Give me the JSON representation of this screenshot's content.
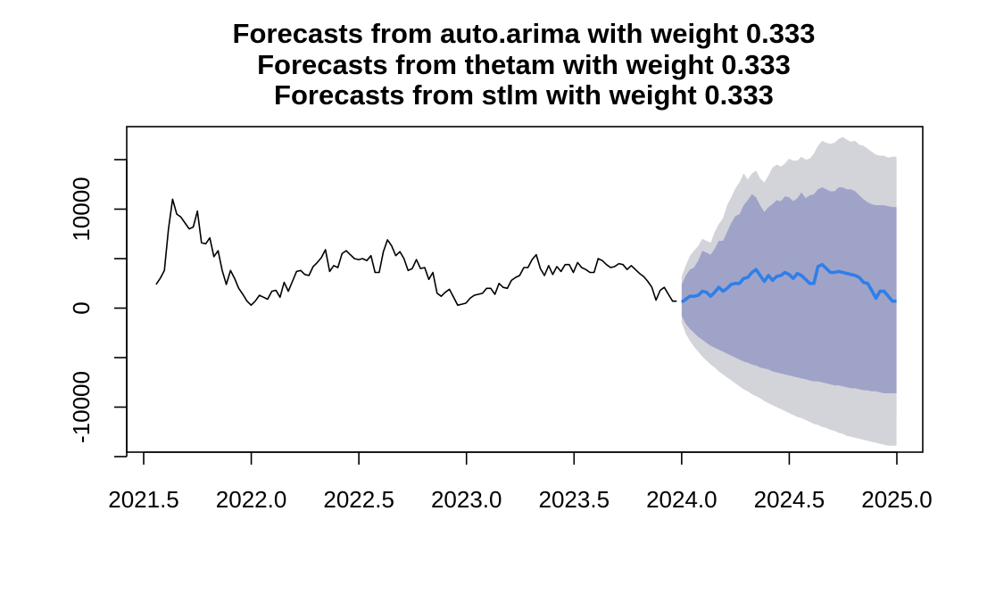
{
  "chart_data": {
    "type": "line",
    "title": [
      "Forecasts from auto.arima with weight 0.333",
      "Forecasts from thetam with weight 0.333",
      "Forecasts from stlm with weight 0.333"
    ],
    "xlabel": "",
    "ylabel": "",
    "xlim": [
      2021.5,
      2025.0
    ],
    "ylim": [
      -14500,
      18500
    ],
    "x_ticks": [
      "2021.5",
      "2022.0",
      "2022.5",
      "2023.0",
      "2023.5",
      "2024.0",
      "2024.5",
      "2025.0"
    ],
    "x_tick_values": [
      2021.5,
      2022.0,
      2022.5,
      2023.0,
      2023.5,
      2024.0,
      2024.5,
      2025.0
    ],
    "y_ticks": [
      "-10000",
      "0",
      "10000"
    ],
    "y_tick_values": [
      -10000,
      0,
      10000
    ],
    "y_minor_ticks": [
      -15000,
      -5000,
      5000,
      15000
    ],
    "grid": false,
    "colors": {
      "history": "#000000",
      "forecast": "#2f7fe8",
      "band80": "#a0a3c8",
      "band95": "#d3d3da"
    },
    "history": {
      "start": 2021.5577,
      "step": 0.0192,
      "values": [
        2400,
        3000,
        3800,
        8000,
        11000,
        9500,
        9200,
        8600,
        8000,
        8200,
        9800,
        6600,
        6500,
        7100,
        5200,
        5800,
        3800,
        2400,
        3800,
        3000,
        2000,
        1400,
        700,
        300,
        700,
        1300,
        1100,
        900,
        1700,
        1800,
        1100,
        2600,
        1700,
        2700,
        3700,
        3800,
        3400,
        3300,
        4200,
        4600,
        5100,
        5900,
        3700,
        4300,
        4100,
        5500,
        5800,
        5400,
        5000,
        4900,
        5000,
        4800,
        5300,
        3600,
        3600,
        5700,
        6900,
        6300,
        5300,
        5700,
        5000,
        3800,
        4000,
        4900,
        4000,
        4100,
        2900,
        3600,
        1500,
        1200,
        1600,
        1900,
        1100,
        300,
        400,
        500,
        1000,
        1300,
        1400,
        1500,
        2000,
        2000,
        1400,
        2500,
        2100,
        2000,
        2800,
        3100,
        3300,
        4100,
        4100,
        4900,
        5400,
        4000,
        3300,
        4300,
        3400,
        4200,
        3700,
        4400,
        4400,
        3600,
        4600,
        4100,
        3900,
        3600,
        3600,
        5000,
        4800,
        4400,
        4100,
        4200,
        4500,
        4400,
        3900,
        4300,
        3900,
        3500,
        3200,
        2700,
        2100,
        800,
        1800,
        2100,
        1400,
        700,
        700
      ]
    },
    "forecast": {
      "start": 2024.0,
      "step": 0.0192,
      "mean": [
        600,
        900,
        1200,
        1200,
        1300,
        1700,
        1600,
        1200,
        1600,
        2100,
        1700,
        2000,
        2400,
        2500,
        2500,
        3000,
        3100,
        3600,
        3900,
        3300,
        2700,
        3300,
        2800,
        3200,
        3300,
        3600,
        3400,
        3000,
        3500,
        3300,
        2900,
        2500,
        2500,
        4200,
        4400,
        4000,
        3600,
        3600,
        3700,
        3600,
        3500,
        3400,
        3300,
        3100,
        2600,
        2500,
        1800,
        1000,
        1700,
        1700,
        1200,
        700,
        700
      ],
      "upper80": [
        2400,
        3300,
        3900,
        4100,
        4800,
        5800,
        5600,
        5400,
        6000,
        6800,
        6800,
        7700,
        8600,
        9300,
        9500,
        10400,
        10900,
        11500,
        11200,
        10400,
        9700,
        10200,
        10500,
        10900,
        10800,
        11300,
        11200,
        10800,
        11100,
        11700,
        11100,
        11400,
        11500,
        12000,
        12200,
        12000,
        11800,
        11800,
        12200,
        12200,
        12000,
        12000,
        11800,
        11400,
        11000,
        10700,
        10500,
        10400,
        10400,
        10400,
        10300,
        10200,
        10200
      ],
      "upper95": [
        3200,
        4300,
        5300,
        5800,
        6300,
        7000,
        6800,
        6600,
        7700,
        8500,
        9100,
        10400,
        11200,
        12100,
        12700,
        13600,
        13000,
        13600,
        13900,
        13100,
        12700,
        13400,
        14200,
        14500,
        14300,
        14600,
        15100,
        14900,
        14900,
        15300,
        15000,
        15100,
        15600,
        16400,
        16900,
        16700,
        16600,
        16700,
        17100,
        17300,
        17000,
        16800,
        16900,
        16500,
        16400,
        16100,
        15800,
        15500,
        15400,
        15400,
        15200,
        15300,
        15300
      ],
      "lower80": [
        -800,
        -1600,
        -2100,
        -2500,
        -2900,
        -3200,
        -3500,
        -3800,
        -4000,
        -4200,
        -4400,
        -4600,
        -4800,
        -5000,
        -5200,
        -5400,
        -5500,
        -5700,
        -5800,
        -6000,
        -6100,
        -6200,
        -6400,
        -6500,
        -6600,
        -6700,
        -6800,
        -6900,
        -7000,
        -7100,
        -7200,
        -7300,
        -7400,
        -7400,
        -7500,
        -7600,
        -7700,
        -7800,
        -7800,
        -7900,
        -8000,
        -8100,
        -8100,
        -8200,
        -8300,
        -8300,
        -8400,
        -8400,
        -8500,
        -8600,
        -8600,
        -8600,
        -8600
      ],
      "lower95": [
        -1500,
        -2600,
        -3300,
        -3900,
        -4400,
        -4900,
        -5300,
        -5700,
        -6000,
        -6400,
        -6700,
        -7000,
        -7300,
        -7600,
        -7900,
        -8200,
        -8400,
        -8700,
        -8900,
        -9100,
        -9400,
        -9600,
        -9800,
        -10000,
        -10200,
        -10400,
        -10600,
        -10800,
        -11000,
        -11100,
        -11300,
        -11500,
        -11700,
        -11800,
        -12000,
        -12100,
        -12300,
        -12400,
        -12600,
        -12700,
        -12900,
        -13000,
        -13100,
        -13200,
        -13300,
        -13400,
        -13500,
        -13600,
        -13700,
        -13800,
        -13900,
        -13900,
        -13900
      ]
    }
  }
}
